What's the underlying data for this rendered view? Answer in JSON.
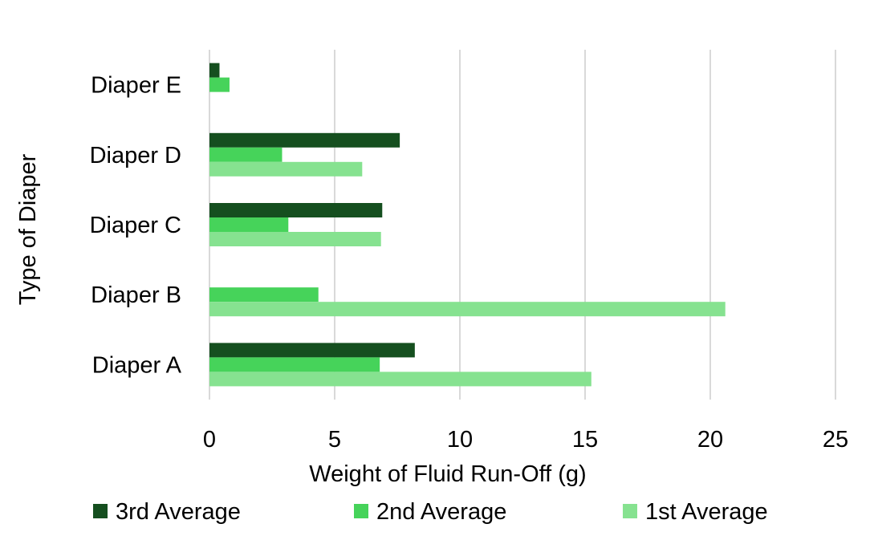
{
  "chart_data": {
    "type": "bar",
    "orientation": "horizontal",
    "title": "",
    "xlabel": "Weight of Fluid Run-Off (g)",
    "ylabel": "Type of Diaper",
    "xlim": [
      0,
      25
    ],
    "xticks": [
      "0",
      "5",
      "10",
      "15",
      "20",
      "25"
    ],
    "categories": [
      "Diaper A",
      "Diaper B",
      "Diaper C",
      "Diaper D",
      "Diaper E"
    ],
    "series": [
      {
        "name": "3rd Average",
        "color": "#154f1f",
        "values": [
          8.2,
          0,
          6.9,
          7.6,
          0.4
        ]
      },
      {
        "name": "2nd Average",
        "color": "#46d35a",
        "values": [
          6.8,
          4.35,
          3.15,
          2.9,
          0.8
        ]
      },
      {
        "name": "1st Average",
        "color": "#86e290",
        "values": [
          15.25,
          20.6,
          6.85,
          6.1,
          0
        ]
      }
    ],
    "grid": true,
    "legend": "bottom"
  }
}
